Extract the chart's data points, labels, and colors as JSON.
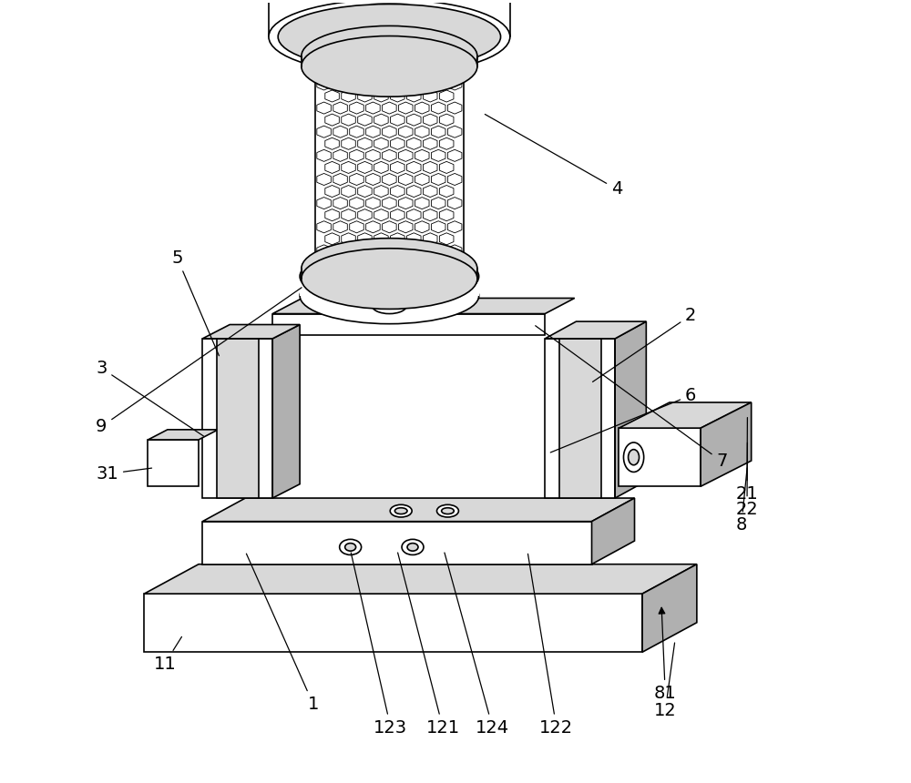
{
  "bg_color": "#ffffff",
  "line_color": "#000000",
  "line_width": 1.2,
  "gray_light": "#d8d8d8",
  "gray_med": "#b0b0b0",
  "font_size": 14
}
